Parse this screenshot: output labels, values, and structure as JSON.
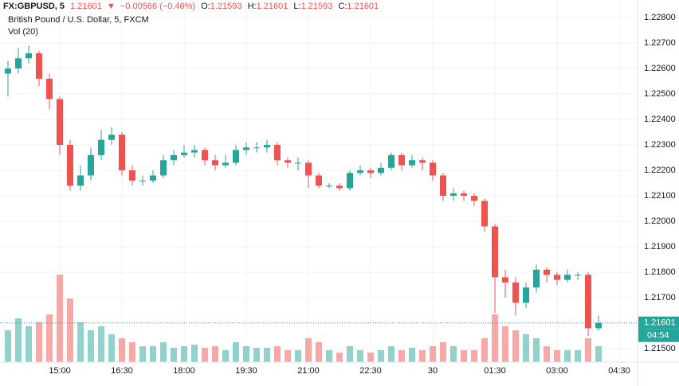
{
  "chart_data": {
    "type": "candlestick",
    "symbol": "FX:GBPUSD, 5",
    "last_price": 1.21601,
    "direction": "▼",
    "change": "−0.00566 (−0.46%)",
    "ohlc_labels": [
      "O:",
      "H:",
      "L:",
      "C:"
    ],
    "ohlc_values": [
      1.21593,
      1.21601,
      1.21593,
      1.21601
    ],
    "title": "British Pound / U.S. Dollar, 5, FXCM",
    "volume_label": "Vol (20)",
    "countdown": "04:54",
    "up_color": "#26a69a",
    "down_color": "#ef5350",
    "grid": true,
    "xlim": [
      813.5,
      1736.5
    ],
    "xticks": [
      {
        "value": 900,
        "label": "15:00"
      },
      {
        "value": 990,
        "label": "16:30"
      },
      {
        "value": 1080,
        "label": "18:00"
      },
      {
        "value": 1170,
        "label": "19:30"
      },
      {
        "value": 1260,
        "label": "21:00"
      },
      {
        "value": 1350,
        "label": "22:30"
      },
      {
        "value": 1440,
        "label": "30"
      },
      {
        "value": 1530,
        "label": "01:30"
      },
      {
        "value": 1620,
        "label": "03:00"
      },
      {
        "value": 1710,
        "label": "04:30"
      }
    ],
    "ylim": [
      1.21447,
      1.22869
    ],
    "yticks": [
      {
        "value": 1.228,
        "label": "1.22800"
      },
      {
        "value": 1.227,
        "label": "1.22700"
      },
      {
        "value": 1.226,
        "label": "1.22600"
      },
      {
        "value": 1.225,
        "label": "1.22500"
      },
      {
        "value": 1.224,
        "label": "1.22400"
      },
      {
        "value": 1.223,
        "label": "1.22300"
      },
      {
        "value": 1.222,
        "label": "1.22200"
      },
      {
        "value": 1.221,
        "label": "1.22100"
      },
      {
        "value": 1.22,
        "label": "1.22000"
      },
      {
        "value": 1.219,
        "label": "1.21900"
      },
      {
        "value": 1.218,
        "label": "1.21800"
      },
      {
        "value": 1.217,
        "label": "1.21700"
      },
      {
        "value": 1.216,
        "label": "1.21600"
      },
      {
        "value": 1.215,
        "label": "1.21500"
      }
    ],
    "x": [
      825,
      840,
      855,
      870,
      885,
      900,
      915,
      930,
      945,
      960,
      975,
      990,
      1005,
      1020,
      1035,
      1050,
      1065,
      1080,
      1095,
      1110,
      1125,
      1140,
      1155,
      1170,
      1185,
      1200,
      1215,
      1230,
      1245,
      1260,
      1275,
      1290,
      1305,
      1320,
      1335,
      1350,
      1365,
      1380,
      1395,
      1410,
      1425,
      1440,
      1455,
      1470,
      1485,
      1500,
      1515,
      1530,
      1545,
      1560,
      1575,
      1590,
      1605,
      1620,
      1635,
      1650,
      1665,
      1680
    ],
    "open": [
      1.2258,
      1.226,
      1.2264,
      1.2266,
      1.2256,
      1.2248,
      1.223,
      1.2214,
      1.2218,
      1.2226,
      1.2232,
      1.2234,
      1.222,
      1.2216,
      1.2216,
      1.2218,
      1.2224,
      1.2226,
      1.2227,
      1.2228,
      1.2224,
      1.2222,
      1.2223,
      1.2228,
      1.2229,
      1.2229,
      1.223,
      1.2224,
      1.2223,
      1.2223,
      1.2218,
      1.2214,
      1.2214,
      1.2213,
      1.2219,
      1.222,
      1.2219,
      1.2221,
      1.2226,
      1.2222,
      1.2224,
      1.2223,
      1.2218,
      1.221,
      1.2211,
      1.221,
      1.2208,
      1.2198,
      1.2178,
      1.2176,
      1.2168,
      1.2174,
      1.2181,
      1.2179,
      1.2177,
      1.2179,
      1.2179,
      1.2158
    ],
    "high": [
      1.2263,
      1.2268,
      1.2269,
      1.2267,
      1.2258,
      1.2249,
      1.2232,
      1.2222,
      1.2229,
      1.2236,
      1.2237,
      1.2235,
      1.2222,
      1.2218,
      1.222,
      1.2226,
      1.2228,
      1.223,
      1.223,
      1.2229,
      1.2226,
      1.2226,
      1.223,
      1.2231,
      1.2231,
      1.2232,
      1.2231,
      1.2225,
      1.2225,
      1.2224,
      1.2219,
      1.2215,
      1.2215,
      1.222,
      1.2222,
      1.2221,
      1.2223,
      1.2227,
      1.2227,
      1.2226,
      1.2225,
      1.2224,
      1.2219,
      1.2213,
      1.2212,
      1.2211,
      1.2209,
      1.2199,
      1.2181,
      1.2178,
      1.2176,
      1.2183,
      1.2182,
      1.218,
      1.2181,
      1.218,
      1.218,
      1.2163
    ],
    "low": [
      1.2249,
      1.2258,
      1.2262,
      1.2253,
      1.2244,
      1.2226,
      1.2212,
      1.2212,
      1.2216,
      1.2224,
      1.223,
      1.2218,
      1.2214,
      1.2214,
      1.2215,
      1.2217,
      1.2222,
      1.2225,
      1.2225,
      1.2222,
      1.222,
      1.2221,
      1.2222,
      1.2226,
      1.2227,
      1.2227,
      1.2222,
      1.2221,
      1.222,
      1.2213,
      1.2213,
      1.2213,
      1.2212,
      1.2212,
      1.2218,
      1.2217,
      1.2218,
      1.222,
      1.222,
      1.2221,
      1.222,
      1.2216,
      1.2208,
      1.2208,
      1.2208,
      1.2206,
      1.2196,
      1.2164,
      1.217,
      1.2163,
      1.2166,
      1.2172,
      1.2176,
      1.2175,
      1.2176,
      1.2177,
      1.2155,
      1.2157
    ],
    "close": [
      1.226,
      1.2264,
      1.2266,
      1.2256,
      1.2248,
      1.223,
      1.2214,
      1.2218,
      1.2226,
      1.2232,
      1.2234,
      1.222,
      1.2216,
      1.2216,
      1.2218,
      1.2224,
      1.2226,
      1.2227,
      1.2228,
      1.2224,
      1.2222,
      1.2223,
      1.2228,
      1.2229,
      1.2229,
      1.223,
      1.2224,
      1.2223,
      1.2223,
      1.2218,
      1.2214,
      1.2214,
      1.2213,
      1.2219,
      1.222,
      1.2219,
      1.2221,
      1.2226,
      1.2222,
      1.2224,
      1.2223,
      1.2218,
      1.221,
      1.2211,
      1.221,
      1.2208,
      1.2198,
      1.2178,
      1.2176,
      1.2168,
      1.2174,
      1.2181,
      1.2179,
      1.2177,
      1.2179,
      1.2179,
      1.2158,
      1.21601
    ],
    "volume": [
      40,
      55,
      45,
      50,
      60,
      110,
      80,
      50,
      40,
      45,
      35,
      30,
      25,
      20,
      20,
      25,
      18,
      20,
      22,
      18,
      20,
      15,
      25,
      20,
      18,
      18,
      20,
      15,
      15,
      30,
      25,
      15,
      12,
      20,
      15,
      12,
      15,
      20,
      15,
      18,
      15,
      20,
      25,
      20,
      15,
      15,
      30,
      60,
      45,
      40,
      35,
      30,
      20,
      15,
      15,
      15,
      30,
      20
    ]
  }
}
